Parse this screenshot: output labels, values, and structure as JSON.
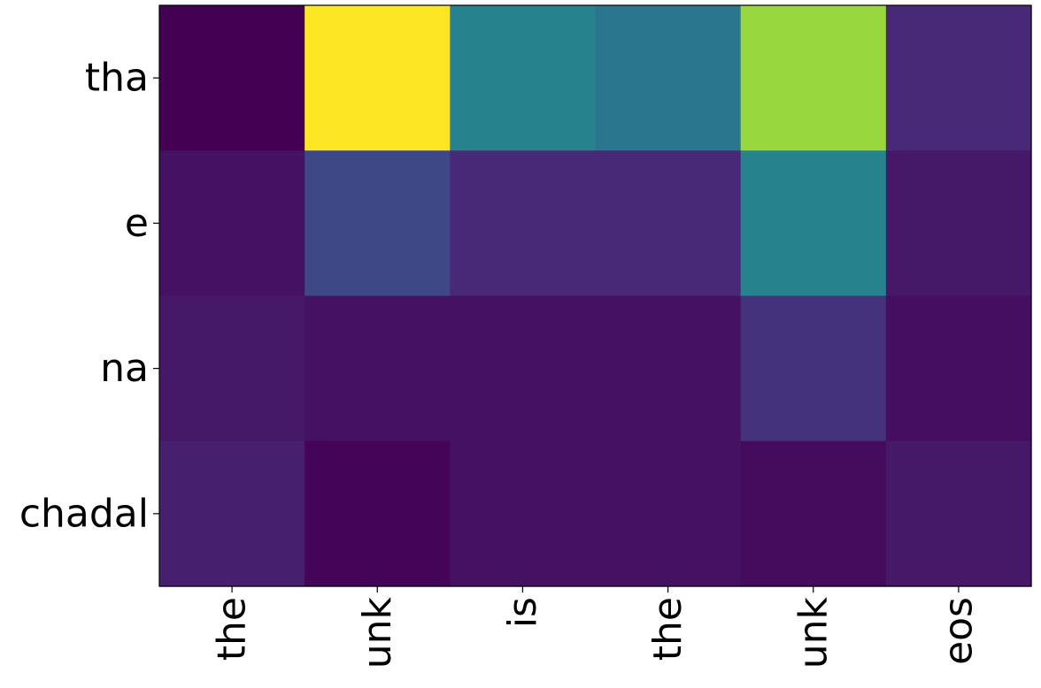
{
  "chart_data": {
    "type": "heatmap",
    "title": "",
    "xlabel": "",
    "ylabel": "",
    "x_categories": [
      "the",
      "unk",
      "is",
      "the",
      "unk",
      "eos"
    ],
    "y_categories": [
      "tha",
      "e",
      "na",
      "chadal"
    ],
    "colormap": "viridis",
    "value_range": [
      0,
      1
    ],
    "values": [
      [
        0.0,
        1.0,
        0.45,
        0.4,
        0.85,
        0.12
      ],
      [
        0.05,
        0.22,
        0.12,
        0.12,
        0.45,
        0.07
      ],
      [
        0.07,
        0.05,
        0.05,
        0.05,
        0.15,
        0.04
      ],
      [
        0.09,
        0.01,
        0.05,
        0.05,
        0.03,
        0.07
      ]
    ],
    "grid": false,
    "legend": "none"
  }
}
